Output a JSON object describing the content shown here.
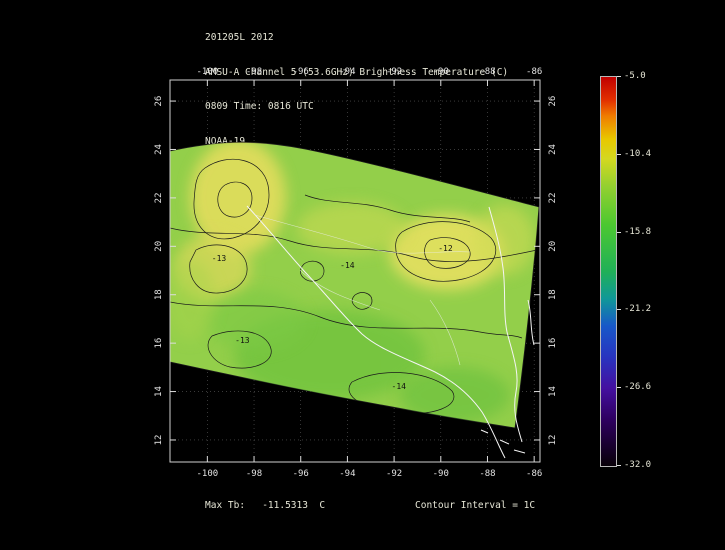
{
  "header": {
    "line1": "201205L 2012",
    "line2": "AMSU-A Channel 5 (53.6GHz) Brightness Temperature (C)",
    "line3": "0809 Time: 0816 UTC",
    "line4": "NOAA-19"
  },
  "footer": {
    "max_tb": "Max Tb:   -11.5313  C",
    "contour_interval": "Contour Interval = 1C"
  },
  "chart_data": {
    "type": "heatmap",
    "title": "AMSU-A Channel 5 (53.6GHz) Brightness Temperature (C)",
    "date_label": "201205L 2012",
    "time_label": "0809 Time: 0816 UTC",
    "satellite": "NOAA-19",
    "units": "C",
    "max_tb_c": -11.5313,
    "contour_interval_c": 1,
    "grid": true,
    "lon_ticks": [
      -100,
      -98,
      -96,
      -94,
      -92,
      -90,
      -88,
      -86
    ],
    "lat_ticks": [
      26,
      24,
      22,
      20,
      18,
      16,
      14,
      12
    ],
    "axis_range": {
      "lon_min": -101.6,
      "lon_max": -85.75,
      "lat_min": 11.09,
      "lat_max": 26.87
    },
    "colorbar": {
      "min": -32.0,
      "max": -5.0,
      "labels": [
        "-5.0",
        "-10.4",
        "-15.8",
        "-21.2",
        "-26.6",
        "-32.0"
      ],
      "stops": [
        {
          "color": "#c00000",
          "pct": 0
        },
        {
          "color": "#e23000",
          "pct": 6
        },
        {
          "color": "#f07c00",
          "pct": 10
        },
        {
          "color": "#e8c800",
          "pct": 16
        },
        {
          "color": "#d4d820",
          "pct": 21
        },
        {
          "color": "#94d030",
          "pct": 28
        },
        {
          "color": "#4cc830",
          "pct": 38
        },
        {
          "color": "#20b058",
          "pct": 50
        },
        {
          "color": "#109898",
          "pct": 57
        },
        {
          "color": "#1858c8",
          "pct": 64
        },
        {
          "color": "#2834c0",
          "pct": 72
        },
        {
          "color": "#4410a0",
          "pct": 80
        },
        {
          "color": "#2e0060",
          "pct": 88
        },
        {
          "color": "#080008",
          "pct": 100
        }
      ]
    },
    "contour_labels": [
      {
        "value": "-13",
        "lon": -99.5,
        "lat": 19.4
      },
      {
        "value": "-13",
        "lon": -98.5,
        "lat": 16.0
      },
      {
        "value": "-14",
        "lon": -94.0,
        "lat": 19.1
      },
      {
        "value": "-12",
        "lon": -89.8,
        "lat": 19.8
      },
      {
        "value": "-14",
        "lon": -91.8,
        "lat": 14.1
      }
    ]
  },
  "colors": {
    "background": "#000000",
    "text": "#e6e6d6",
    "swath_base": "#93cf4a",
    "contour": "#1a1a1a",
    "coastline": "#f4f4f4"
  }
}
